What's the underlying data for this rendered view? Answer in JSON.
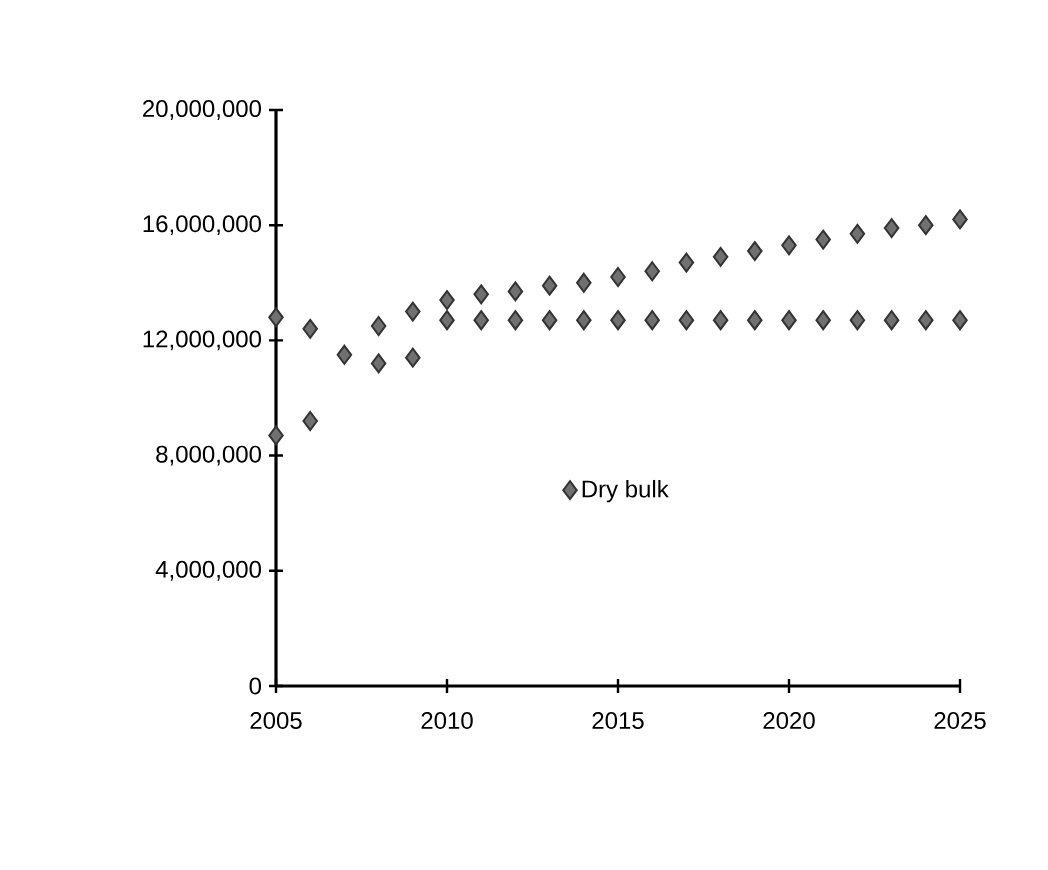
{
  "chart_data": {
    "type": "scatter",
    "x": [
      2005,
      2006,
      2007,
      2008,
      2009,
      2010,
      2011,
      2012,
      2013,
      2014,
      2015,
      2016,
      2017,
      2018,
      2019,
      2020,
      2021,
      2022,
      2023,
      2024,
      2025
    ],
    "series": [
      {
        "name": "Dry bulk",
        "color": "#333333",
        "values": [
          8700000,
          9200000,
          11500000,
          11200000,
          11400000,
          12700000,
          12700000,
          12700000,
          12700000,
          12700000,
          12700000,
          12700000,
          12700000,
          12700000,
          12700000,
          12700000,
          12700000,
          12700000,
          12700000,
          12700000,
          12700000
        ]
      },
      {
        "color": "#333333",
        "values": [
          12800000,
          12400000,
          null,
          12500000,
          13000000,
          13400000,
          13600000,
          13700000,
          13900000,
          14000000,
          14200000,
          14400000,
          14700000,
          14900000,
          15100000,
          15300000,
          15500000,
          15700000,
          15900000,
          16000000,
          16200000
        ]
      }
    ],
    "xlim": [
      2005,
      2025
    ],
    "xticks": [
      2005,
      2010,
      2015,
      2020,
      2025
    ],
    "ylim": [
      0,
      20000000
    ],
    "yticks": [
      {
        "value": 0,
        "label": "0"
      },
      {
        "value": 4000000,
        "label": "4,000,000"
      },
      {
        "value": 8000000,
        "label": "8,000,000"
      },
      {
        "value": 12000000,
        "label": "12,000,000"
      },
      {
        "value": 16000000,
        "label": "16,000,000"
      },
      {
        "value": 20000000,
        "label": "20,000,000"
      }
    ],
    "marker": "diamond",
    "legend": "center",
    "grid": false
  }
}
